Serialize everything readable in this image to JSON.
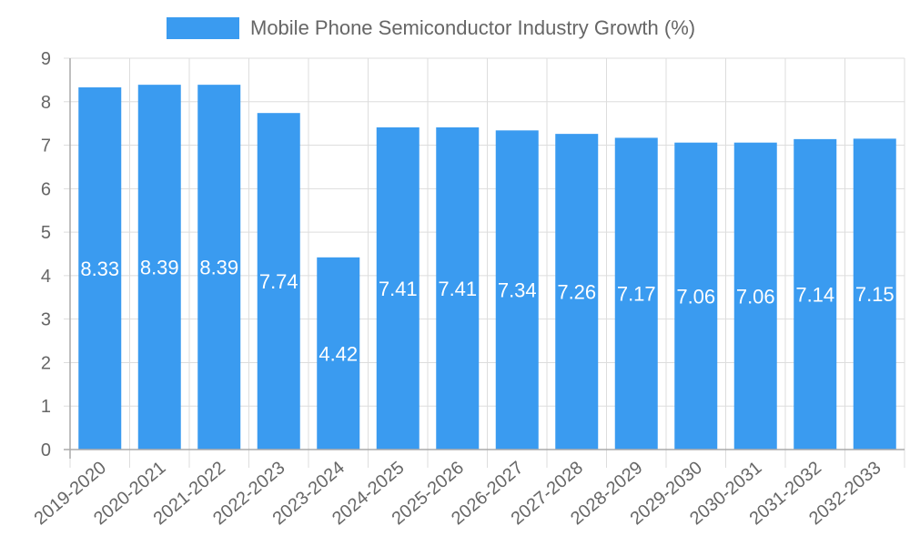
{
  "chart_data": {
    "type": "bar",
    "title": "",
    "legend": [
      {
        "label": "Mobile Phone Semiconductor Industry Growth (%)",
        "color": "#3a9bf0"
      }
    ],
    "legend_position": "top",
    "categories": [
      "2019-2020",
      "2020-2021",
      "2021-2022",
      "2022-2023",
      "2023-2024",
      "2024-2025",
      "2025-2026",
      "2026-2027",
      "2027-2028",
      "2028-2029",
      "2029-2030",
      "2030-2031",
      "2031-2032",
      "2032-2033"
    ],
    "series": [
      {
        "name": "Mobile Phone Semiconductor Industry Growth (%)",
        "color": "#3a9bf0",
        "values": [
          8.33,
          8.39,
          8.39,
          7.74,
          4.42,
          7.41,
          7.41,
          7.34,
          7.26,
          7.17,
          7.06,
          7.06,
          7.14,
          7.15
        ]
      }
    ],
    "data_labels": [
      "8.33",
      "8.39",
      "8.39",
      "7.74",
      "4.42",
      "7.41",
      "7.41",
      "7.34",
      "7.26",
      "7.17",
      "7.06",
      "7.06",
      "7.14",
      "7.15"
    ],
    "xlabel": "",
    "ylabel": "",
    "ylim": [
      0,
      9
    ],
    "yticks": [
      0,
      1,
      2,
      3,
      4,
      5,
      6,
      7,
      8,
      9
    ],
    "grid": true
  },
  "legend": {
    "label": "Mobile Phone Semiconductor Industry Growth (%)"
  }
}
